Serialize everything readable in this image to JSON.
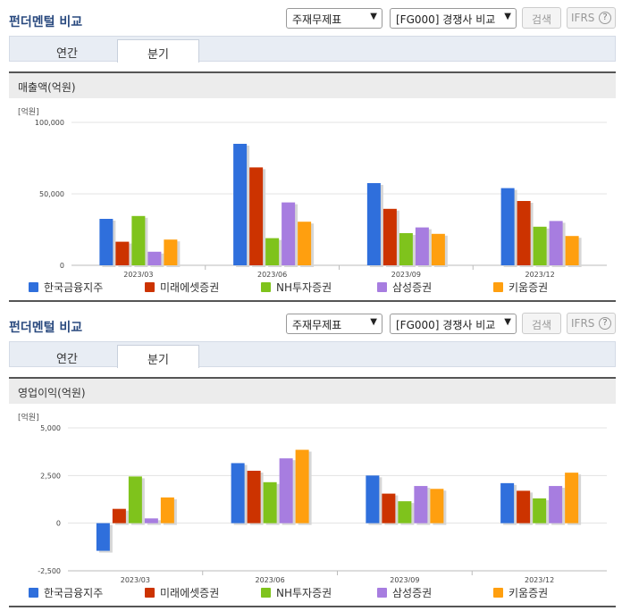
{
  "sections": [
    {
      "title": "펀더멘털 비교",
      "select_statement": "주재무제표",
      "select_compare": "[FG000] 경쟁사 비교",
      "search_label": "검색",
      "ifrs_label": "IFRS",
      "help_label": "?",
      "tabs": [
        {
          "label": "연간"
        },
        {
          "label": "분기"
        }
      ],
      "active_tab": "분기",
      "chart_title": "매출액(억원)",
      "unit_label": "[억원]"
    },
    {
      "title": "펀더멘털 비교",
      "select_statement": "주재무제표",
      "select_compare": "[FG000] 경쟁사 비교",
      "search_label": "검색",
      "ifrs_label": "IFRS",
      "help_label": "?",
      "tabs": [
        {
          "label": "연간"
        },
        {
          "label": "분기"
        }
      ],
      "active_tab": "분기",
      "chart_title": "영업이익(억원)",
      "unit_label": "[억원]"
    }
  ],
  "chart_data": [
    {
      "type": "bar",
      "title": "매출액(억원)",
      "ylabel": "[억원]",
      "categories": [
        "2023/03",
        "2023/06",
        "2023/09",
        "2023/12"
      ],
      "ylim": [
        0,
        100000
      ],
      "yticks": [
        0,
        50000,
        100000
      ],
      "ytick_labels": [
        "0",
        "50,000",
        "100,000"
      ],
      "grid": true,
      "legend": "bottom",
      "series": [
        {
          "name": "한국금융지주",
          "color": "#2f6fdc",
          "values": [
            32500,
            85000,
            57500,
            54000
          ]
        },
        {
          "name": "미래에셋증권",
          "color": "#cc3300",
          "values": [
            16500,
            68500,
            39500,
            45000
          ]
        },
        {
          "name": "NH투자증권",
          "color": "#7fc31c",
          "values": [
            34500,
            19000,
            22500,
            27000
          ]
        },
        {
          "name": "삼성증권",
          "color": "#a77de0",
          "values": [
            9500,
            44000,
            26500,
            31000
          ]
        },
        {
          "name": "키움증권",
          "color": "#ff9f0f",
          "values": [
            18000,
            30500,
            22000,
            20500
          ]
        }
      ]
    },
    {
      "type": "bar",
      "title": "영업이익(억원)",
      "ylabel": "[억원]",
      "categories": [
        "2023/03",
        "2023/06",
        "2023/09",
        "2023/12"
      ],
      "ylim": [
        -2500,
        5000
      ],
      "yticks": [
        -2500,
        0,
        2500,
        5000
      ],
      "ytick_labels": [
        "-2,500",
        "0",
        "2,500",
        "5,000"
      ],
      "grid": true,
      "legend": "bottom",
      "series": [
        {
          "name": "한국금융지주",
          "color": "#2f6fdc",
          "values": [
            -1450,
            3150,
            2500,
            2100
          ]
        },
        {
          "name": "미래에셋증권",
          "color": "#cc3300",
          "values": [
            750,
            2750,
            1550,
            1700
          ]
        },
        {
          "name": "NH투자증권",
          "color": "#7fc31c",
          "values": [
            2450,
            2150,
            1150,
            1300
          ]
        },
        {
          "name": "삼성증권",
          "color": "#a77de0",
          "values": [
            250,
            3400,
            1950,
            1950
          ]
        },
        {
          "name": "키움증권",
          "color": "#ff9f0f",
          "values": [
            1350,
            3850,
            1800,
            2650
          ]
        }
      ]
    }
  ]
}
